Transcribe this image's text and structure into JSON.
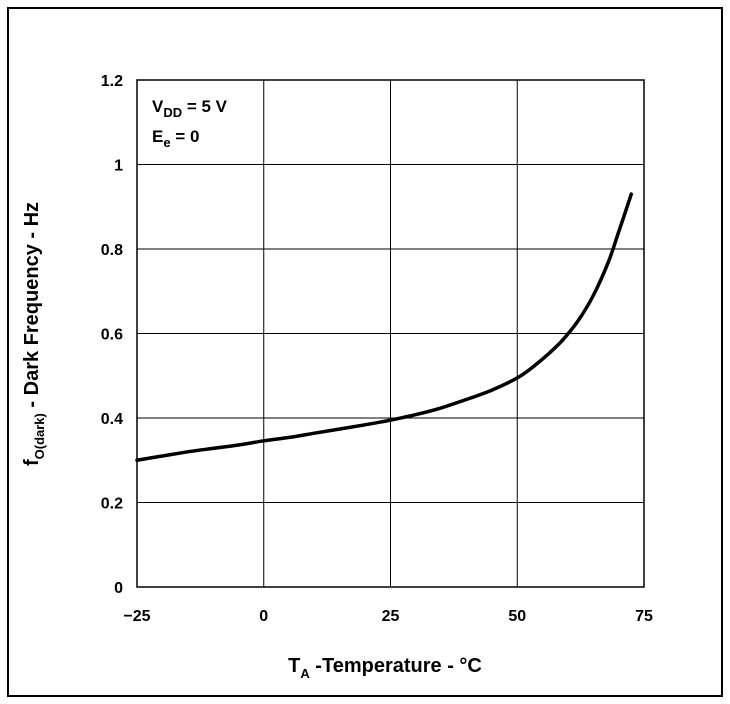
{
  "chart_data": {
    "type": "line",
    "xlabel": {
      "main": "T",
      "sub": "A",
      "rest": " -Temperature - °C"
    },
    "ylabel": {
      "main": "f",
      "sub": "O(dark)",
      "rest": " - Dark Frequency - Hz"
    },
    "xlim": [
      -25,
      75
    ],
    "ylim": [
      0,
      1.2
    ],
    "x_ticks": [
      -25,
      0,
      25,
      50,
      75
    ],
    "x_tick_labels": [
      "−25",
      "0",
      "25",
      "50",
      "75"
    ],
    "y_ticks": [
      0,
      0.2,
      0.4,
      0.6,
      0.8,
      1,
      1.2
    ],
    "y_tick_labels": [
      "0",
      "0.2",
      "0.4",
      "0.6",
      "0.8",
      "1",
      "1.2"
    ],
    "grid": true,
    "annotations": [
      {
        "main": "V",
        "sub": "DD",
        "rest": " = 5 V"
      },
      {
        "main": "E",
        "sub": "e",
        "rest": " = 0"
      }
    ],
    "series": [
      {
        "x": [
          -25,
          -20,
          -15,
          -10,
          -5,
          0,
          5,
          10,
          15,
          20,
          25,
          30,
          35,
          40,
          45,
          50,
          53,
          56,
          59,
          62,
          65,
          68,
          70,
          72.5
        ],
        "y": [
          0.3,
          0.31,
          0.32,
          0.328,
          0.336,
          0.346,
          0.354,
          0.364,
          0.374,
          0.384,
          0.395,
          0.408,
          0.424,
          0.444,
          0.466,
          0.495,
          0.52,
          0.55,
          0.585,
          0.63,
          0.69,
          0.77,
          0.84,
          0.93
        ]
      }
    ]
  }
}
